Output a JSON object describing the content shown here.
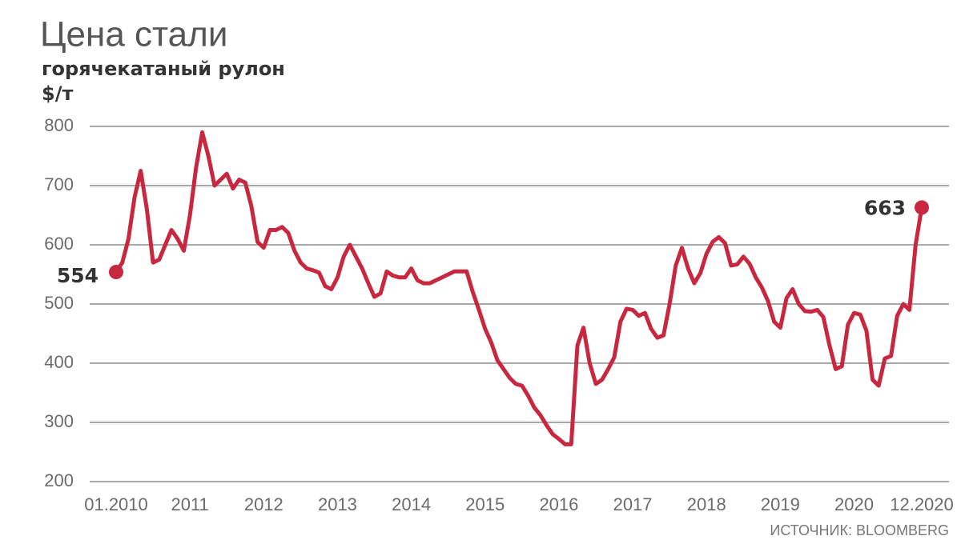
{
  "chart_data": {
    "type": "line",
    "title": "Цена стали",
    "subtitle": "горячекатаный рулон",
    "y_label": "$/т",
    "source": "ИСТОЧНИК: BLOOMBERG",
    "color": "#c8283f",
    "grid": true,
    "ylim": [
      200,
      800
    ],
    "yticks": [
      200,
      300,
      400,
      500,
      600,
      700,
      800
    ],
    "categories": [
      "01.2010",
      null,
      null,
      null,
      null,
      null,
      null,
      null,
      null,
      null,
      null,
      null,
      "2011",
      null,
      null,
      null,
      null,
      null,
      null,
      null,
      null,
      null,
      null,
      null,
      "2012",
      null,
      null,
      null,
      null,
      null,
      null,
      null,
      null,
      null,
      null,
      null,
      "2013",
      null,
      null,
      null,
      null,
      null,
      null,
      null,
      null,
      null,
      null,
      null,
      "2014",
      null,
      null,
      null,
      null,
      null,
      null,
      null,
      null,
      null,
      null,
      null,
      "2015",
      null,
      null,
      null,
      null,
      null,
      null,
      null,
      null,
      null,
      null,
      null,
      "2016",
      null,
      null,
      null,
      null,
      null,
      null,
      null,
      null,
      null,
      null,
      null,
      "2017",
      null,
      null,
      null,
      null,
      null,
      null,
      null,
      null,
      null,
      null,
      null,
      "2018",
      null,
      null,
      null,
      null,
      null,
      null,
      null,
      null,
      null,
      null,
      null,
      "2019",
      null,
      null,
      null,
      null,
      null,
      null,
      null,
      null,
      null,
      null,
      null,
      "2020",
      null,
      null,
      null,
      null,
      null,
      null,
      null,
      null,
      null,
      null,
      "12.2020"
    ],
    "values": [
      554,
      570,
      610,
      680,
      725,
      660,
      570,
      575,
      600,
      625,
      610,
      590,
      650,
      730,
      790,
      750,
      700,
      710,
      720,
      695,
      710,
      705,
      665,
      605,
      595,
      625,
      625,
      630,
      620,
      590,
      570,
      560,
      557,
      553,
      530,
      525,
      545,
      580,
      600,
      580,
      560,
      535,
      512,
      518,
      555,
      548,
      545,
      545,
      560,
      540,
      535,
      535,
      540,
      545,
      550,
      555,
      555,
      555,
      520,
      490,
      458,
      435,
      405,
      390,
      375,
      365,
      362,
      345,
      325,
      312,
      295,
      280,
      272,
      263,
      263,
      430,
      460,
      400,
      365,
      372,
      390,
      410,
      470,
      492,
      490,
      480,
      485,
      458,
      443,
      447,
      500,
      565,
      595,
      560,
      535,
      552,
      585,
      605,
      613,
      603,
      565,
      567,
      580,
      568,
      545,
      528,
      505,
      470,
      460,
      510,
      525,
      500,
      488,
      487,
      490,
      478,
      430,
      390,
      395,
      465,
      485,
      482,
      455,
      372,
      362,
      408,
      412,
      480,
      500,
      490,
      600,
      663
    ]
  }
}
